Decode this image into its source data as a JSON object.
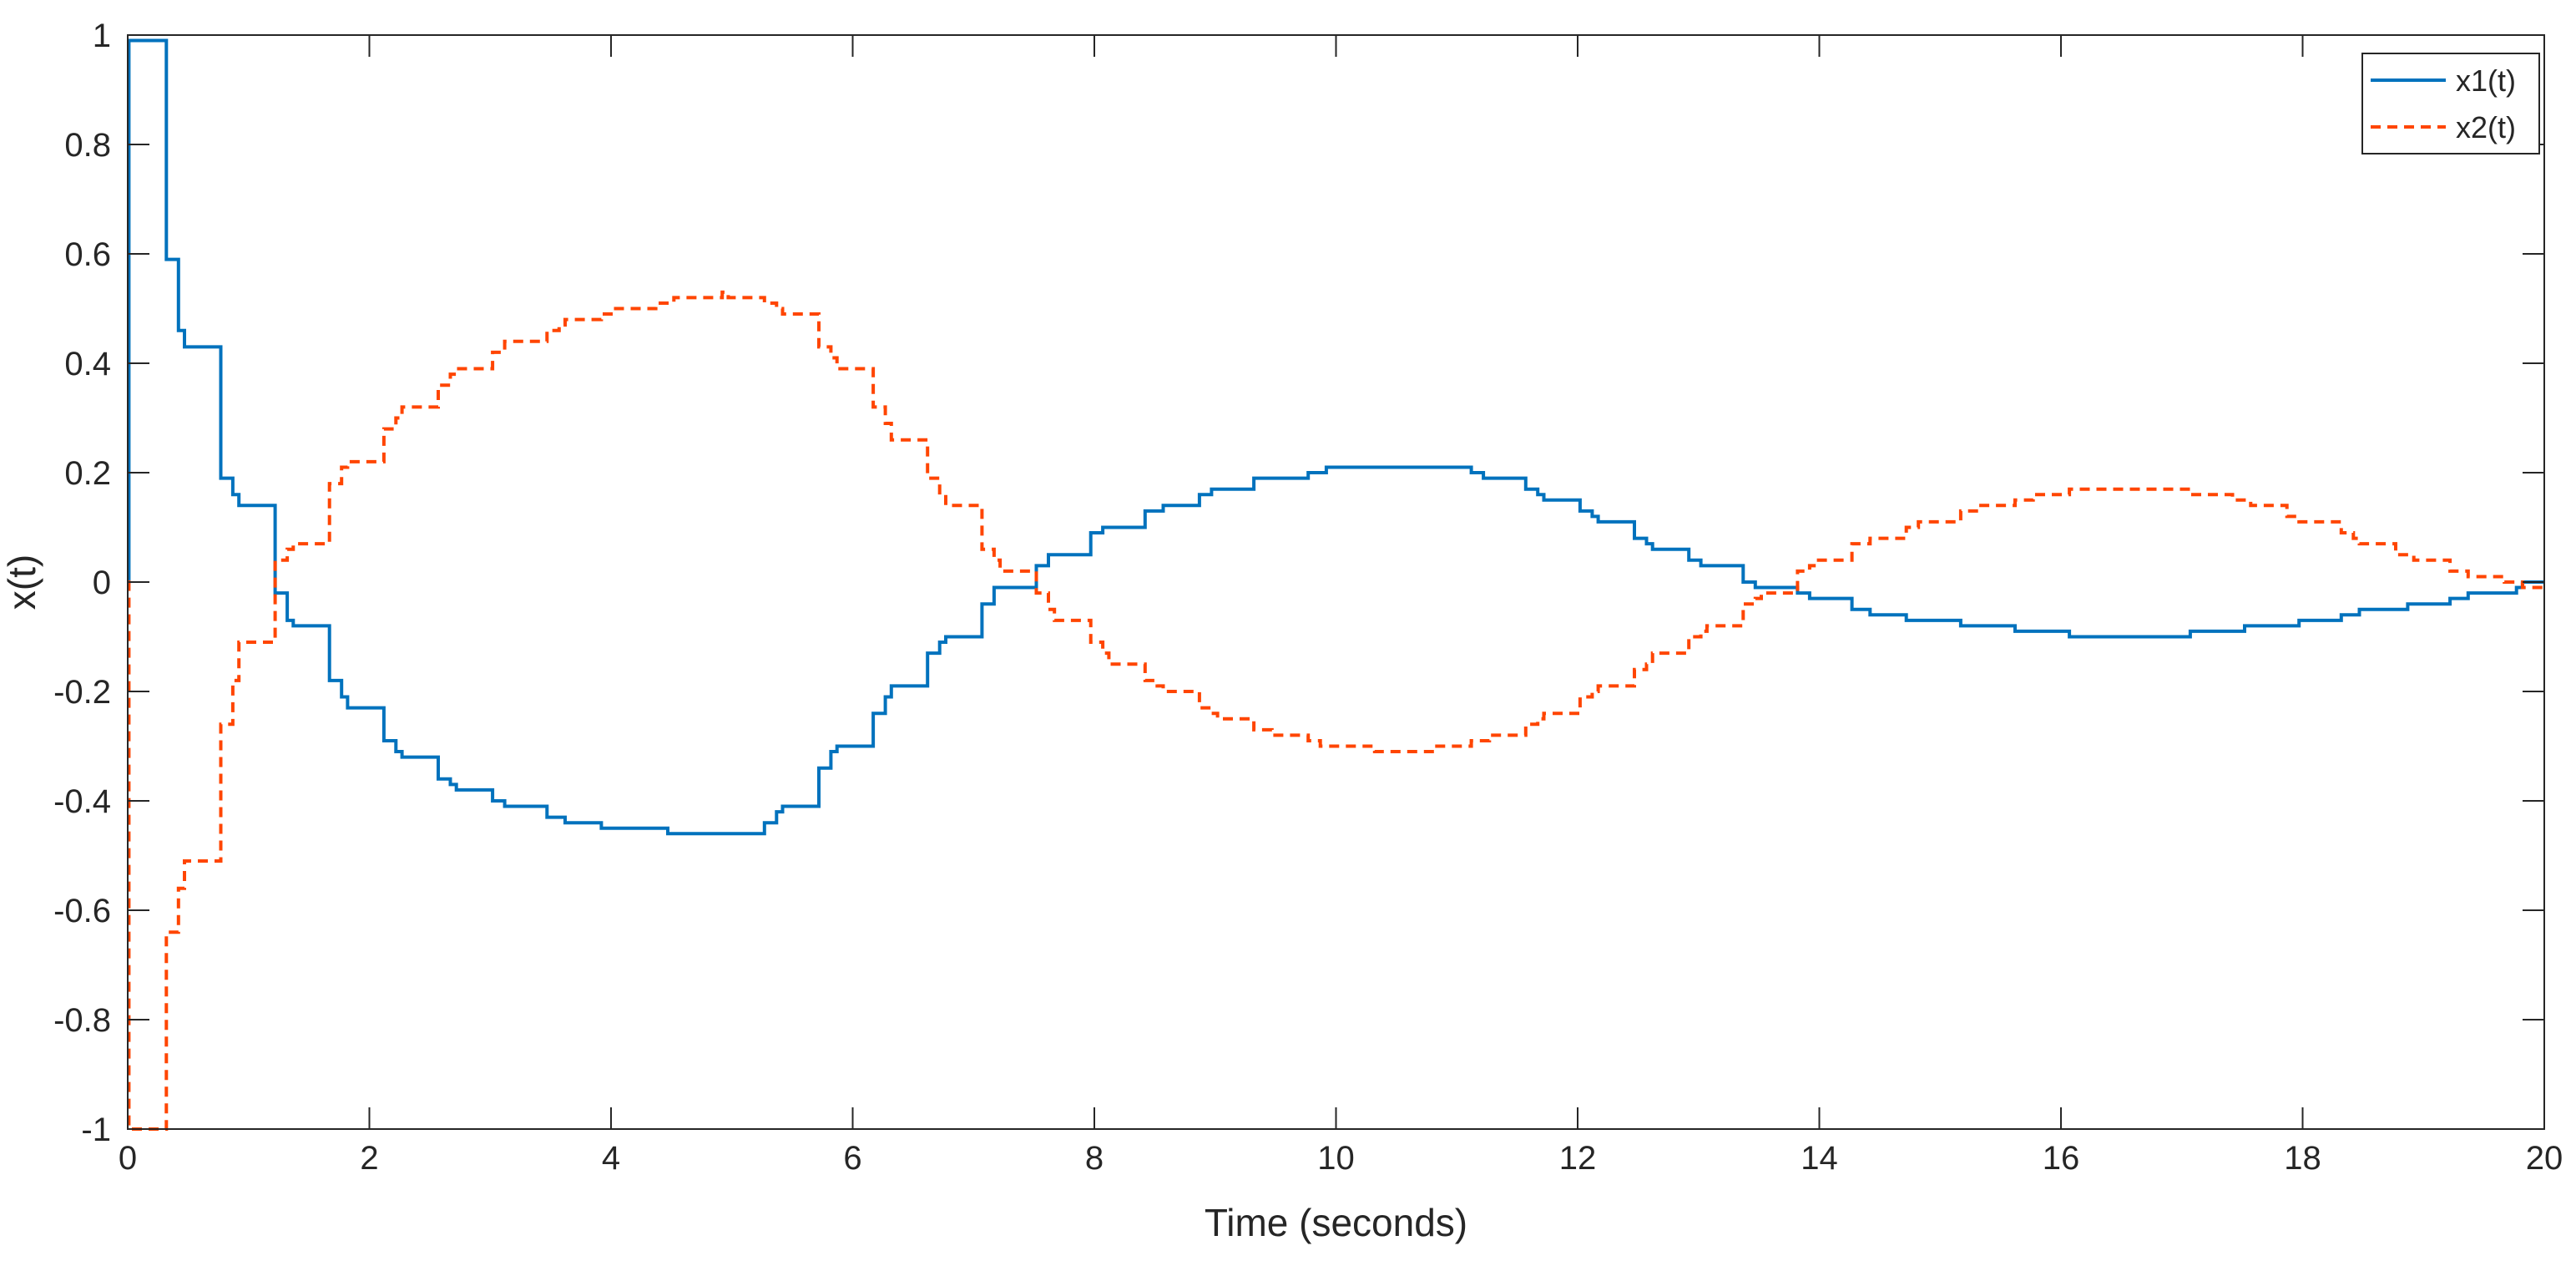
{
  "colors": {
    "x1": "#0072BD",
    "x2": "#FF4500",
    "axis": "#262626",
    "background": "#ffffff"
  },
  "chart_data": {
    "type": "line",
    "line_style": "step",
    "xlabel": "Time (seconds)",
    "ylabel": "x(t)",
    "xlim": [
      0,
      20
    ],
    "ylim": [
      -1,
      1
    ],
    "xticks": [
      0,
      2,
      4,
      6,
      8,
      10,
      12,
      14,
      16,
      18,
      20
    ],
    "yticks": [
      -1,
      -0.8,
      -0.6,
      -0.4,
      -0.2,
      0,
      0.2,
      0.4,
      0.6,
      0.8,
      1
    ],
    "xtick_labels": [
      "0",
      "2",
      "4",
      "6",
      "8",
      "10",
      "12",
      "14",
      "16",
      "18",
      "20"
    ],
    "ytick_labels": [
      "-1",
      "-0.8",
      "-0.6",
      "-0.4",
      "-0.2",
      "0",
      "0.2",
      "0.4",
      "0.6",
      "0.8",
      "1"
    ],
    "grid": false,
    "legend_position": "top-right",
    "series": [
      {
        "name": "x1(t)",
        "color": "#0072BD",
        "dash": "solid",
        "x": [
          0,
          0.01,
          0.32,
          0.42,
          0.47,
          0.77,
          0.87,
          0.92,
          1.22,
          1.32,
          1.37,
          1.67,
          1.77,
          1.82,
          2.12,
          2.22,
          2.27,
          2.57,
          2.67,
          2.72,
          3.02,
          3.12,
          3.17,
          3.47,
          3.57,
          3.62,
          3.92,
          4.02,
          4.07,
          4.37,
          4.47,
          4.52,
          4.82,
          4.92,
          4.97,
          5.27,
          5.37,
          5.42,
          5.72,
          5.82,
          5.87,
          6.17,
          6.27,
          6.32,
          6.62,
          6.72,
          6.77,
          7.07,
          7.17,
          7.22,
          7.52,
          7.62,
          7.67,
          7.97,
          8.07,
          8.12,
          8.42,
          8.52,
          8.57,
          8.87,
          8.97,
          9.02,
          9.32,
          9.42,
          9.47,
          9.77,
          9.87,
          9.92,
          10.22,
          10.32,
          10.37,
          10.67,
          10.77,
          10.82,
          11.12,
          11.22,
          11.27,
          11.57,
          11.67,
          11.72,
          12.02,
          12.12,
          12.17,
          12.47,
          12.57,
          12.62,
          12.92,
          13.02,
          13.07,
          13.37,
          13.47,
          13.52,
          13.82,
          13.92,
          13.97,
          14.27,
          14.37,
          14.42,
          14.72,
          14.82,
          14.87,
          15.17,
          15.27,
          15.32,
          15.62,
          15.72,
          15.77,
          16.07,
          16.17,
          16.22,
          16.52,
          16.62,
          16.67,
          16.97,
          17.07,
          17.12,
          17.42,
          17.52,
          17.57,
          17.87,
          17.97,
          18.02,
          18.32,
          18.42,
          18.47,
          18.77,
          18.87,
          18.92,
          19.22,
          19.32,
          19.37,
          19.67,
          19.77,
          19.82,
          20
        ],
        "y": [
          0.0,
          0.99,
          0.59,
          0.46,
          0.43,
          0.19,
          0.16,
          0.14,
          -0.02,
          -0.07,
          -0.08,
          -0.18,
          -0.21,
          -0.23,
          -0.29,
          -0.31,
          -0.32,
          -0.36,
          -0.37,
          -0.38,
          -0.4,
          -0.41,
          -0.41,
          -0.43,
          -0.43,
          -0.44,
          -0.45,
          -0.45,
          -0.45,
          -0.45,
          -0.46,
          -0.46,
          -0.46,
          -0.46,
          -0.46,
          -0.44,
          -0.42,
          -0.41,
          -0.34,
          -0.31,
          -0.3,
          -0.24,
          -0.21,
          -0.19,
          -0.13,
          -0.11,
          -0.1,
          -0.04,
          -0.01,
          -0.01,
          0.03,
          0.05,
          0.05,
          0.09,
          0.1,
          0.1,
          0.13,
          0.13,
          0.14,
          0.16,
          0.17,
          0.17,
          0.19,
          0.19,
          0.19,
          0.2,
          0.2,
          0.21,
          0.21,
          0.21,
          0.21,
          0.21,
          0.21,
          0.21,
          0.2,
          0.19,
          0.19,
          0.17,
          0.16,
          0.15,
          0.13,
          0.12,
          0.11,
          0.08,
          0.07,
          0.06,
          0.04,
          0.03,
          0.03,
          0.0,
          -0.01,
          -0.01,
          -0.02,
          -0.03,
          -0.03,
          -0.05,
          -0.05,
          -0.06,
          -0.07,
          -0.07,
          -0.07,
          -0.08,
          -0.08,
          -0.08,
          -0.09,
          -0.09,
          -0.09,
          -0.1,
          -0.1,
          -0.1,
          -0.1,
          -0.1,
          -0.1,
          -0.1,
          -0.09,
          -0.09,
          -0.09,
          -0.08,
          -0.08,
          -0.08,
          -0.07,
          -0.07,
          -0.06,
          -0.06,
          -0.05,
          -0.05,
          -0.04,
          -0.04,
          -0.03,
          -0.03,
          -0.02,
          -0.02,
          -0.01,
          0.0,
          0.0
        ]
      },
      {
        "name": "x2(t)",
        "color": "#FF4500",
        "dash": "dashed",
        "x": [
          0,
          0.01,
          0.32,
          0.42,
          0.47,
          0.77,
          0.87,
          0.92,
          1.22,
          1.32,
          1.37,
          1.67,
          1.77,
          1.82,
          2.12,
          2.22,
          2.27,
          2.57,
          2.67,
          2.72,
          3.02,
          3.12,
          3.17,
          3.47,
          3.57,
          3.62,
          3.92,
          4.02,
          4.07,
          4.37,
          4.47,
          4.52,
          4.82,
          4.92,
          4.97,
          5.27,
          5.37,
          5.42,
          5.72,
          5.82,
          5.87,
          6.17,
          6.27,
          6.32,
          6.62,
          6.72,
          6.77,
          7.07,
          7.17,
          7.22,
          7.52,
          7.62,
          7.67,
          7.97,
          8.07,
          8.12,
          8.42,
          8.52,
          8.57,
          8.87,
          8.97,
          9.02,
          9.32,
          9.42,
          9.47,
          9.77,
          9.87,
          9.92,
          10.22,
          10.32,
          10.37,
          10.67,
          10.77,
          10.82,
          11.12,
          11.22,
          11.27,
          11.57,
          11.67,
          11.72,
          12.02,
          12.12,
          12.17,
          12.47,
          12.57,
          12.62,
          12.92,
          13.02,
          13.07,
          13.37,
          13.47,
          13.52,
          13.82,
          13.92,
          13.97,
          14.27,
          14.37,
          14.42,
          14.72,
          14.82,
          14.87,
          15.17,
          15.27,
          15.32,
          15.62,
          15.72,
          15.77,
          16.07,
          16.17,
          16.22,
          16.52,
          16.62,
          16.67,
          16.97,
          17.07,
          17.12,
          17.42,
          17.52,
          17.57,
          17.87,
          17.97,
          18.02,
          18.32,
          18.42,
          18.47,
          18.77,
          18.87,
          18.92,
          19.22,
          19.32,
          19.37,
          19.67,
          19.77,
          19.82,
          20
        ],
        "y": [
          0.0,
          -1.0,
          -0.64,
          -0.56,
          -0.51,
          -0.26,
          -0.18,
          -0.11,
          0.04,
          0.06,
          0.07,
          0.18,
          0.21,
          0.22,
          0.28,
          0.3,
          0.32,
          0.36,
          0.38,
          0.39,
          0.42,
          0.44,
          0.44,
          0.46,
          0.47,
          0.48,
          0.49,
          0.5,
          0.5,
          0.51,
          0.51,
          0.52,
          0.52,
          0.53,
          0.52,
          0.51,
          0.5,
          0.49,
          0.43,
          0.41,
          0.39,
          0.32,
          0.29,
          0.26,
          0.19,
          0.16,
          0.14,
          0.06,
          0.04,
          0.02,
          -0.02,
          -0.05,
          -0.07,
          -0.11,
          -0.13,
          -0.15,
          -0.18,
          -0.19,
          -0.2,
          -0.23,
          -0.24,
          -0.25,
          -0.27,
          -0.27,
          -0.28,
          -0.29,
          -0.3,
          -0.3,
          -0.3,
          -0.31,
          -0.31,
          -0.31,
          -0.31,
          -0.3,
          -0.29,
          -0.29,
          -0.28,
          -0.26,
          -0.25,
          -0.24,
          -0.21,
          -0.2,
          -0.19,
          -0.16,
          -0.15,
          -0.13,
          -0.1,
          -0.09,
          -0.08,
          -0.04,
          -0.03,
          -0.02,
          0.02,
          0.03,
          0.04,
          0.07,
          0.07,
          0.08,
          0.1,
          0.11,
          0.11,
          0.13,
          0.13,
          0.14,
          0.15,
          0.15,
          0.16,
          0.17,
          0.17,
          0.17,
          0.17,
          0.17,
          0.17,
          0.17,
          0.16,
          0.16,
          0.15,
          0.15,
          0.14,
          0.12,
          0.11,
          0.11,
          0.09,
          0.08,
          0.07,
          0.05,
          0.05,
          0.04,
          0.02,
          0.02,
          0.01,
          0.0,
          0.0,
          -0.01,
          -0.01
        ]
      }
    ]
  }
}
